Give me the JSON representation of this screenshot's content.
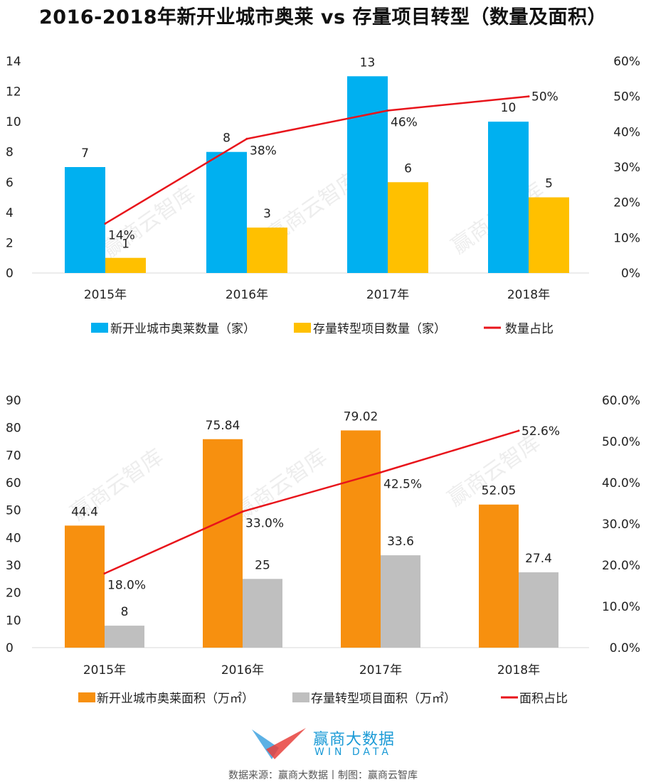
{
  "title": "2016-2018年新开业城市奥莱 vs 存量项目转型（数量及面积）",
  "watermark": "赢商云智库",
  "chart_data": [
    {
      "type": "bar",
      "categories": [
        "2015年",
        "2016年",
        "2017年",
        "2018年"
      ],
      "series": [
        {
          "name": "新开业城市奥莱数量（家）",
          "kind": "bar",
          "axis": "left",
          "color": "#00B0F0",
          "values": [
            7,
            8,
            13,
            10
          ],
          "labels": [
            "7",
            "8",
            "13",
            "10"
          ]
        },
        {
          "name": "存量转型项目数量（家）",
          "kind": "bar",
          "axis": "left",
          "color": "#FFC000",
          "values": [
            1,
            3,
            6,
            5
          ],
          "labels": [
            "1",
            "3",
            "6",
            "5"
          ]
        },
        {
          "name": "数量占比",
          "kind": "line",
          "axis": "right",
          "color": "#E8141B",
          "values": [
            14,
            38,
            46,
            50
          ],
          "labels": [
            "14%",
            "38%",
            "46%",
            "50%"
          ]
        }
      ],
      "ylim": [
        0,
        14
      ],
      "yticks": [
        "0",
        "2",
        "4",
        "6",
        "8",
        "10",
        "12",
        "14"
      ],
      "y2lim": [
        0,
        60
      ],
      "y2ticks": [
        "0%",
        "10%",
        "20%",
        "30%",
        "40%",
        "50%",
        "60%"
      ],
      "grid": false,
      "legend": "bottom"
    },
    {
      "type": "bar",
      "categories": [
        "2015年",
        "2016年",
        "2017年",
        "2018年"
      ],
      "series": [
        {
          "name": "新开业城市奥莱面积（万㎡）",
          "kind": "bar",
          "axis": "left",
          "color": "#F7900F",
          "values": [
            44.4,
            75.84,
            79.02,
            52.05
          ],
          "labels": [
            "44.4",
            "75.84",
            "79.02",
            "52.05"
          ]
        },
        {
          "name": "存量转型项目面积（万㎡）",
          "kind": "bar",
          "axis": "left",
          "color": "#BFBFBF",
          "values": [
            8,
            25,
            33.6,
            27.4
          ],
          "labels": [
            "8",
            "25",
            "33.6",
            "27.4"
          ]
        },
        {
          "name": "面积占比",
          "kind": "line",
          "axis": "right",
          "color": "#E8141B",
          "values": [
            18.0,
            33.0,
            42.5,
            52.6
          ],
          "labels": [
            "18.0%",
            "33.0%",
            "42.5%",
            "52.6%"
          ]
        }
      ],
      "ylim": [
        0,
        90
      ],
      "yticks": [
        "0",
        "10",
        "20",
        "30",
        "40",
        "50",
        "60",
        "70",
        "80",
        "90"
      ],
      "y2lim": [
        0,
        60
      ],
      "y2ticks": [
        "0.0%",
        "10.0%",
        "20.0%",
        "30.0%",
        "40.0%",
        "50.0%",
        "60.0%"
      ],
      "grid": false,
      "legend": "bottom"
    }
  ],
  "logo": {
    "cn": "赢商大数据",
    "en": "WIN DATA"
  },
  "footer": "数据来源：赢商大数据丨制图：赢商云智库"
}
